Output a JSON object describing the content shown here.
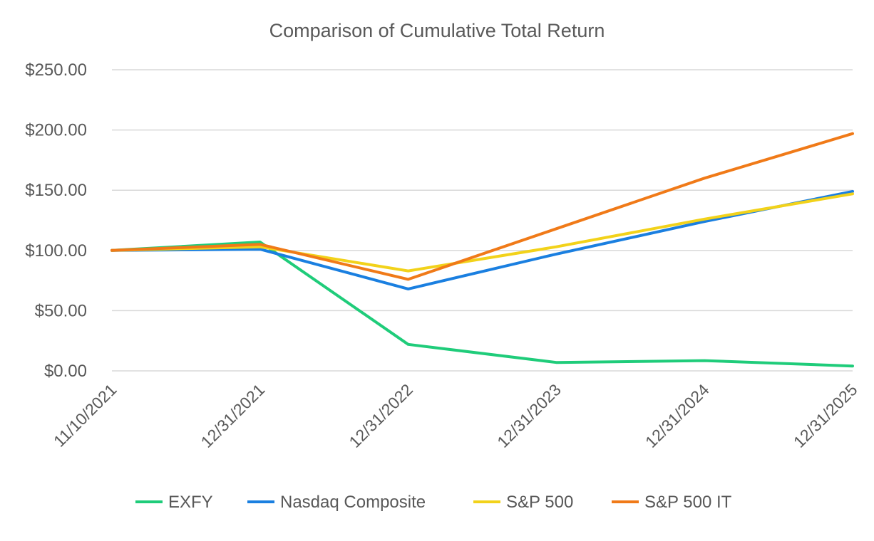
{
  "chart_data": {
    "type": "line",
    "title": "Comparison of Cumulative Total Return",
    "xlabel": "",
    "ylabel": "",
    "categories": [
      "11/10/2021",
      "12/31/2021",
      "12/31/2022",
      "12/31/2023",
      "12/31/2024",
      "12/31/2025"
    ],
    "ylim": [
      0,
      250
    ],
    "yticks": [
      0,
      50,
      100,
      150,
      200,
      250
    ],
    "ytick_labels": [
      "$0.00",
      "$50.00",
      "$100.00",
      "$150.00",
      "$200.00",
      "$250.00"
    ],
    "grid": "horizontal",
    "legend_position": "bottom",
    "series": [
      {
        "name": "EXFY",
        "color": "#1fcc7a",
        "values": [
          100,
          107,
          22,
          7,
          8.5,
          4
        ]
      },
      {
        "name": "Nasdaq Composite",
        "color": "#1a7fe0",
        "values": [
          100,
          101,
          68,
          97,
          124,
          149
        ]
      },
      {
        "name": "S&P 500",
        "color": "#f2d21a",
        "values": [
          100,
          103,
          83,
          103,
          126,
          147
        ]
      },
      {
        "name": "S&P 500 IT",
        "color": "#f07a18",
        "values": [
          100,
          105,
          76,
          118,
          160,
          197
        ]
      }
    ]
  }
}
